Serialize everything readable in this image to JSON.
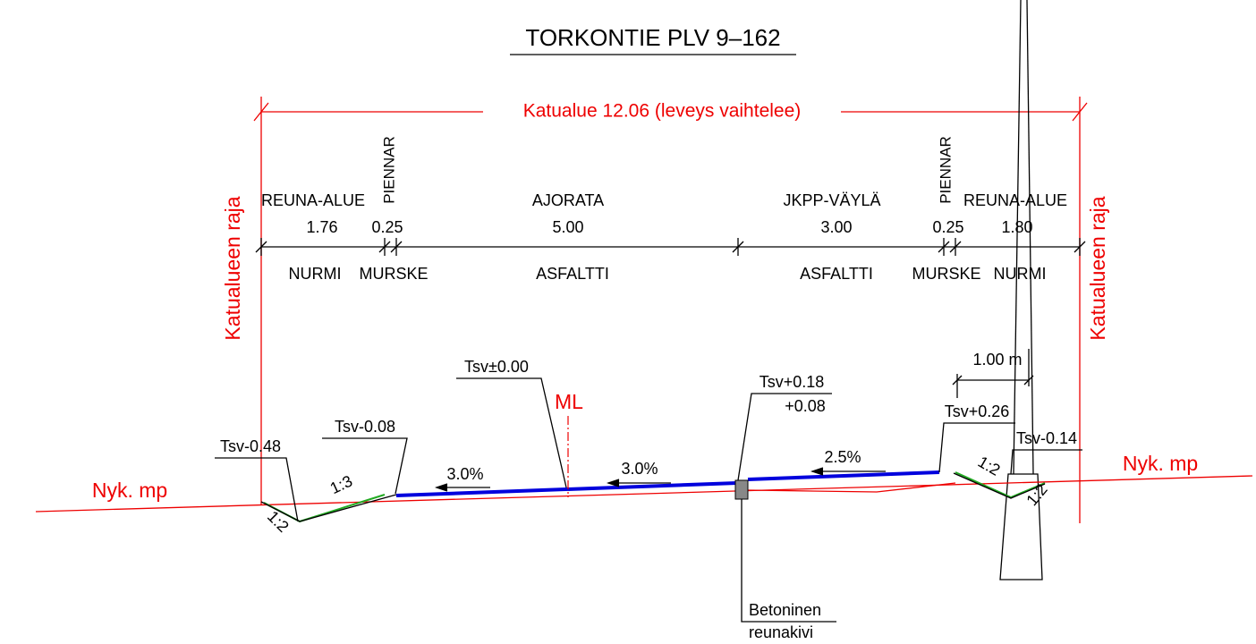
{
  "title": "TORKONTIE PLV 9–162",
  "extent_label": "Katualue 12.06 (leveys vaihtelee)",
  "boundary_labels": [
    "Katualueen raja",
    "Katualueen raja"
  ],
  "sections": [
    {
      "name": "REUNA-ALUE",
      "width": "1.76",
      "material": "NURMI"
    },
    {
      "name": "PIENNAR",
      "width": "0.25",
      "material": "MURSKE"
    },
    {
      "name": "AJORATA",
      "width": "5.00",
      "material": "ASFALTTI"
    },
    {
      "name": "JKPP-VÄYLÄ",
      "width": "3.00",
      "material": "ASFALTTI"
    },
    {
      "name": "PIENNAR",
      "width": "0.25",
      "material": "MURSKE"
    },
    {
      "name": "REUNA-ALUE",
      "width": "1.80",
      "material": "NURMI"
    }
  ],
  "levels": [
    "Tsv±0.00",
    "Tsv+0.18",
    "+0.08",
    "Tsv-0.08",
    "Tsv-0.48",
    "Tsv+0.26",
    "Tsv-0.14"
  ],
  "centerline": "ML",
  "slopes": [
    "3.0%",
    "3.0%",
    "2.5%"
  ],
  "ratios": [
    "1:3",
    "1:2",
    "1:2",
    "1:2"
  ],
  "ground_labels": [
    "Nyk. mp",
    "Nyk. mp"
  ],
  "dimension": "1.00 m",
  "curb_label": [
    "Betoninen",
    "reunakivi"
  ]
}
